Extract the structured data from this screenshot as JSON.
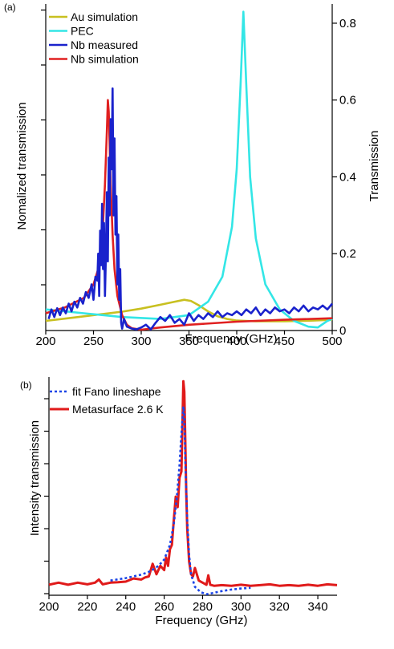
{
  "chart_data": [
    {
      "type": "line",
      "panel_label": "(a)",
      "xlabel": "Frequency (GHz)",
      "ylabel_left": "Nomalized transmission",
      "ylabel_right": "Transmission",
      "xlim": [
        200,
        500
      ],
      "xticks": [
        200,
        250,
        300,
        350,
        400,
        450,
        500
      ],
      "y_right_lim": [
        0,
        0.85
      ],
      "y_right_ticks": [
        0,
        0.2,
        0.4,
        0.6,
        0.8
      ],
      "y_right_tick_labels": [
        "0",
        "0.2",
        "0.4",
        "0.6",
        "0.8"
      ],
      "y_left_tick_count": 7,
      "legend_position": "top-left",
      "series": [
        {
          "name": "Au simulation",
          "color": "#c8c020",
          "x": [
            200,
            220,
            240,
            260,
            280,
            300,
            320,
            335,
            345,
            352,
            360,
            370,
            380,
            390,
            400,
            420,
            450,
            480,
            500
          ],
          "y": [
            0.025,
            0.031,
            0.037,
            0.043,
            0.049,
            0.057,
            0.067,
            0.075,
            0.08,
            0.077,
            0.066,
            0.05,
            0.037,
            0.03,
            0.026,
            0.024,
            0.024,
            0.026,
            0.028
          ]
        },
        {
          "name": "PEC",
          "color": "#33e6e6",
          "x": [
            200,
            240,
            280,
            320,
            350,
            370,
            385,
            395,
            400,
            404,
            407,
            410,
            414,
            420,
            430,
            445,
            460,
            475,
            485,
            495,
            500
          ],
          "y": [
            0.055,
            0.045,
            0.035,
            0.03,
            0.04,
            0.075,
            0.14,
            0.27,
            0.42,
            0.64,
            0.83,
            0.64,
            0.4,
            0.24,
            0.12,
            0.055,
            0.025,
            0.01,
            0.008,
            0.025,
            0.03
          ]
        },
        {
          "name": "Nb measured",
          "color": "#1a22cc",
          "x": [
            203,
            206,
            209,
            212,
            215,
            218,
            221,
            224,
            227,
            230,
            233,
            236,
            239,
            242,
            245,
            248,
            250,
            252,
            254,
            255,
            256,
            257,
            258,
            259,
            260,
            261,
            262,
            263,
            264,
            265,
            266,
            267,
            268,
            269,
            270,
            271,
            272,
            273,
            274,
            275,
            276,
            277,
            278,
            279,
            280,
            282,
            285,
            290,
            295,
            300,
            305,
            310,
            315,
            320,
            325,
            330,
            335,
            340,
            345,
            350,
            355,
            360,
            365,
            370,
            375,
            380,
            385,
            390,
            395,
            400,
            405,
            410,
            415,
            420,
            425,
            430,
            435,
            440,
            445,
            450,
            455,
            460,
            465,
            470,
            475,
            480,
            485,
            490,
            495,
            500
          ],
          "y": [
            0.03,
            0.055,
            0.035,
            0.058,
            0.04,
            0.06,
            0.045,
            0.07,
            0.05,
            0.075,
            0.06,
            0.085,
            0.07,
            0.1,
            0.085,
            0.12,
            0.08,
            0.14,
            0.13,
            0.2,
            0.09,
            0.26,
            0.17,
            0.33,
            0.16,
            0.28,
            0.09,
            0.2,
            0.36,
            0.18,
            0.45,
            0.3,
            0.55,
            0.42,
            0.63,
            0.3,
            0.5,
            0.25,
            0.35,
            0.12,
            0.25,
            0.08,
            0.16,
            0.02,
            0.005,
            0.03,
            0.01,
            0.005,
            0.003,
            0.008,
            0.015,
            0.003,
            0.02,
            0.035,
            0.025,
            0.04,
            0.02,
            0.03,
            0.015,
            0.045,
            0.025,
            0.04,
            0.03,
            0.045,
            0.035,
            0.05,
            0.035,
            0.045,
            0.04,
            0.05,
            0.04,
            0.055,
            0.045,
            0.06,
            0.04,
            0.055,
            0.045,
            0.06,
            0.05,
            0.055,
            0.045,
            0.06,
            0.05,
            0.065,
            0.05,
            0.06,
            0.055,
            0.065,
            0.055,
            0.07
          ]
        },
        {
          "name": "Nb simulation",
          "color": "#e02020",
          "x": [
            200,
            220,
            240,
            250,
            255,
            258,
            260,
            262,
            264,
            265,
            266,
            267,
            268,
            270,
            272,
            275,
            280,
            285,
            290,
            300,
            320,
            350,
            400,
            450,
            500
          ],
          "y": [
            0.045,
            0.06,
            0.085,
            0.12,
            0.16,
            0.21,
            0.28,
            0.38,
            0.52,
            0.6,
            0.57,
            0.48,
            0.38,
            0.25,
            0.16,
            0.09,
            0.04,
            0.015,
            0.006,
            0.002,
            0.008,
            0.015,
            0.023,
            0.028,
            0.032
          ]
        }
      ]
    },
    {
      "type": "line",
      "panel_label": "(b)",
      "xlabel": "Frequency (GHz)",
      "ylabel": "Intensity transmission",
      "xlim": [
        200,
        350
      ],
      "xticks": [
        200,
        220,
        240,
        260,
        280,
        300,
        320,
        340
      ],
      "y_tick_count": 7,
      "legend_position": "top-left",
      "series": [
        {
          "name": "fit Fano lineshape",
          "color": "#1a44e6",
          "dashed": true,
          "x": [
            232,
            240,
            248,
            253,
            257,
            260,
            263,
            265,
            266.5,
            268,
            269,
            270,
            270.5,
            271,
            272,
            273,
            274,
            276,
            279,
            282,
            285,
            290,
            295,
            300,
            305
          ],
          "y": [
            0.03,
            0.042,
            0.058,
            0.075,
            0.1,
            0.13,
            0.2,
            0.3,
            0.42,
            0.58,
            0.73,
            0.86,
            0.82,
            0.6,
            0.32,
            0.15,
            0.06,
            0.0,
            -0.025,
            -0.035,
            -0.03,
            -0.02,
            -0.013,
            -0.008,
            -0.005
          ]
        },
        {
          "name": "Metasurface 2.6 K",
          "color": "#e01a1a",
          "x": [
            200,
            205,
            210,
            215,
            220,
            224,
            226,
            228,
            232,
            236,
            240,
            244,
            248,
            250,
            252,
            254,
            256,
            258,
            260,
            261,
            262,
            263,
            264,
            265,
            266,
            267,
            268,
            269,
            270,
            270.5,
            271,
            271.5,
            272,
            273,
            274,
            275,
            276,
            277,
            278,
            280,
            282,
            283,
            284,
            286,
            290,
            295,
            300,
            305,
            310,
            315,
            320,
            325,
            330,
            335,
            340,
            345,
            350
          ],
          "y": [
            0.01,
            0.02,
            0.01,
            0.02,
            0.012,
            0.02,
            0.035,
            0.012,
            0.02,
            0.022,
            0.025,
            0.04,
            0.035,
            0.045,
            0.05,
            0.11,
            0.06,
            0.1,
            0.08,
            0.14,
            0.1,
            0.18,
            0.2,
            0.32,
            0.43,
            0.38,
            0.52,
            0.55,
            0.98,
            0.93,
            0.7,
            0.45,
            0.28,
            0.12,
            0.06,
            0.05,
            0.09,
            0.06,
            0.03,
            0.02,
            0.01,
            0.055,
            0.01,
            0.005,
            0.008,
            0.005,
            0.01,
            0.005,
            0.008,
            0.012,
            0.005,
            0.008,
            0.005,
            0.01,
            0.005,
            0.012,
            0.008
          ]
        }
      ]
    }
  ]
}
